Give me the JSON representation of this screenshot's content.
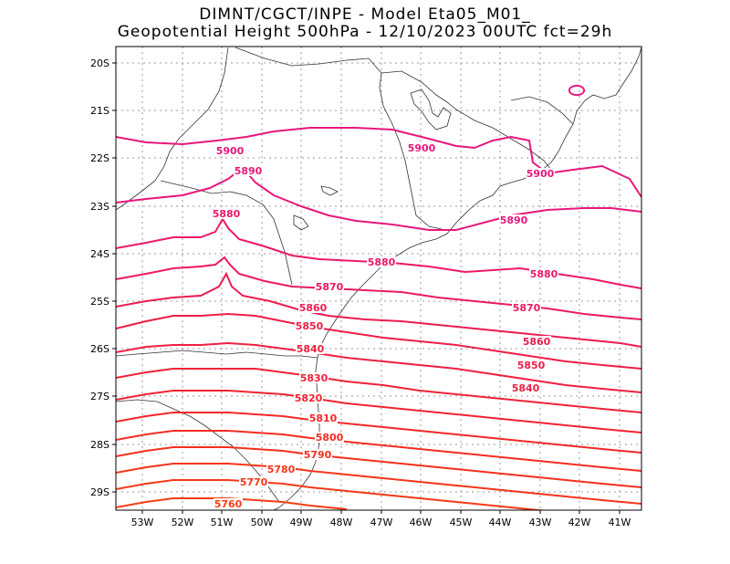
{
  "header": {
    "line1": "DIMNT/CGCT/INPE -  Model Eta05_M01_",
    "line2": "Geopotential Height 500hPa -  12/10/2023 00UTC fct=29h"
  },
  "map": {
    "lat_labels": [
      "20S",
      "21S",
      "22S",
      "23S",
      "24S",
      "25S",
      "26S",
      "27S",
      "28S",
      "29S"
    ],
    "lon_labels": [
      "53W",
      "52W",
      "51W",
      "50W",
      "49W",
      "48W",
      "47W",
      "46W",
      "45W",
      "44W",
      "43W",
      "42W",
      "41W"
    ],
    "frame_color": "#000000",
    "grid_color": "#999999",
    "coast_color": "#333333"
  },
  "contours": [
    {
      "level": "5900",
      "color": "#e8177c",
      "labels": [
        "5900",
        "5900",
        "5900"
      ]
    },
    {
      "level": "5890",
      "color": "#e8177c",
      "labels": [
        "5890",
        "5890"
      ]
    },
    {
      "level": "5880",
      "color": "#ec1868",
      "labels": [
        "5880",
        "5880",
        "5880"
      ]
    },
    {
      "level": "5870",
      "color": "#ec1a5c",
      "labels": [
        "5870",
        "5870"
      ]
    },
    {
      "level": "5860",
      "color": "#ec1c50",
      "labels": [
        "5860",
        "5860"
      ]
    },
    {
      "level": "5850",
      "color": "#ee1e48",
      "labels": [
        "5850",
        "5850"
      ]
    },
    {
      "level": "5840",
      "color": "#ee2040",
      "labels": [
        "5840",
        "5840"
      ]
    },
    {
      "level": "5830",
      "color": "#f02238",
      "labels": [
        "5830"
      ]
    },
    {
      "level": "5820",
      "color": "#f02430",
      "labels": [
        "5820"
      ]
    },
    {
      "level": "5810",
      "color": "#f22828",
      "labels": [
        "5810"
      ]
    },
    {
      "level": "5800",
      "color": "#f42c22",
      "labels": [
        "5800"
      ]
    },
    {
      "level": "5790",
      "color": "#f4301c",
      "labels": [
        "5790"
      ]
    },
    {
      "level": "5780",
      "color": "#f6341a",
      "labels": [
        "5780"
      ]
    },
    {
      "level": "5770",
      "color": "#f63818",
      "labels": [
        "5770"
      ]
    },
    {
      "level": "5760",
      "color": "#f83c14",
      "labels": [
        "5760"
      ]
    }
  ]
}
